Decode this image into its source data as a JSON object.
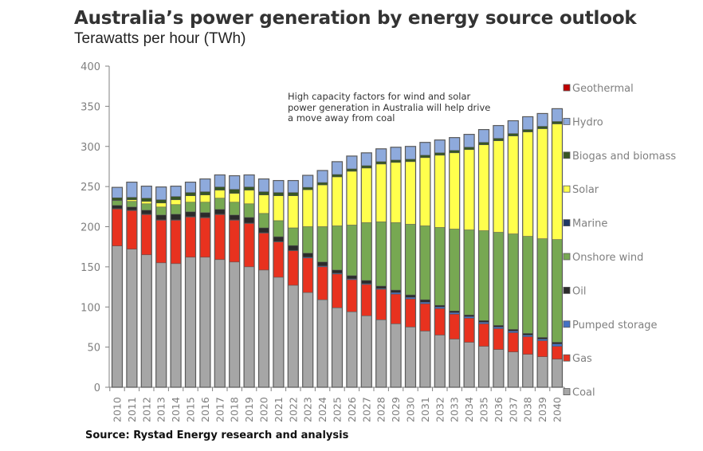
{
  "header": {
    "title": "Australia’s power generation by energy source outlook",
    "subtitle": "Terawatts per hour (TWh)"
  },
  "annotation": "High capacity factors for wind and solar power generation in Australia will help drive a move away from coal",
  "source": "Source: Rystad Energy research and analysis",
  "chart_data": {
    "type": "bar",
    "stacked": true,
    "title": "Australia’s power generation by energy source outlook",
    "subtitle": "Terawatts per hour (TWh)",
    "xlabel": "",
    "ylabel": "",
    "ylim": [
      0,
      400
    ],
    "yticks": [
      0,
      50,
      100,
      150,
      200,
      250,
      300,
      350,
      400
    ],
    "grid": false,
    "legend_position": "right",
    "categories": [
      "2010",
      "2011",
      "2012",
      "2013",
      "2014",
      "2015",
      "2016",
      "2017",
      "2018",
      "2019",
      "2020",
      "2021",
      "2022",
      "2023",
      "2024",
      "2025",
      "2026",
      "2027",
      "2028",
      "2029",
      "2030",
      "2031",
      "2032",
      "2033",
      "2034",
      "2035",
      "2036",
      "2037",
      "2038",
      "2039",
      "2040"
    ],
    "series": [
      {
        "name": "Coal",
        "color": "#a6a6a6",
        "values": [
          176,
          172,
          165,
          155,
          154,
          162,
          162,
          159,
          156,
          150,
          146,
          137,
          127,
          118,
          109,
          99,
          94,
          89,
          84,
          79,
          75,
          70,
          65,
          60,
          56,
          51,
          47,
          44,
          41,
          38,
          35
        ]
      },
      {
        "name": "Gas",
        "color": "#e8321f",
        "values": [
          46,
          48,
          50,
          53,
          54,
          50,
          49,
          56,
          52,
          54,
          46,
          44,
          43,
          43,
          41,
          42,
          40,
          39,
          38,
          37,
          35,
          34,
          33,
          31,
          30,
          28,
          26,
          24,
          22,
          20,
          16
        ]
      },
      {
        "name": "Pumped storage",
        "color": "#4472c4",
        "values": [
          0.5,
          0.5,
          0.5,
          0.5,
          0.5,
          0.5,
          0.5,
          0.5,
          0.5,
          0.5,
          0.5,
          0.5,
          0.5,
          1,
          1,
          1,
          1,
          1,
          1,
          2,
          2,
          2,
          2,
          2,
          2,
          2,
          2,
          2,
          2,
          2,
          3
        ]
      },
      {
        "name": "Oil",
        "color": "#2b2b2b",
        "values": [
          4,
          4,
          5,
          6,
          7,
          6,
          6,
          6,
          6,
          7,
          6,
          6,
          6,
          5,
          5,
          4,
          4,
          4,
          3,
          3,
          3,
          3,
          2,
          2,
          2,
          2,
          2,
          2,
          2,
          2,
          2
        ]
      },
      {
        "name": "Onshore wind",
        "color": "#77a852",
        "values": [
          6,
          7,
          8,
          10,
          12,
          12,
          13,
          14,
          16,
          17,
          18,
          20,
          22,
          33,
          44,
          55,
          63,
          72,
          80,
          84,
          88,
          92,
          97,
          102,
          106,
          112,
          116,
          119,
          121,
          123,
          128
        ]
      },
      {
        "name": "Marine",
        "color": "#1f3864",
        "values": [
          0,
          0,
          0,
          0,
          0,
          0,
          0,
          0,
          0,
          0,
          0,
          0,
          0,
          0,
          0,
          0,
          0,
          0,
          0,
          0,
          0,
          0,
          0,
          0,
          0,
          0,
          0,
          0,
          0,
          0,
          0
        ]
      },
      {
        "name": "Solar",
        "color": "#ffff4d",
        "values": [
          0.5,
          2,
          3,
          5,
          6,
          8,
          9,
          10,
          11,
          17,
          23,
          31,
          40,
          46,
          52,
          61,
          67,
          68,
          72,
          75,
          78,
          85,
          90,
          95,
          100,
          107,
          114,
          122,
          130,
          137,
          144
        ]
      },
      {
        "name": "Biogas and biomass",
        "color": "#375623",
        "values": [
          3,
          3,
          4,
          4,
          4,
          4,
          4,
          4,
          5,
          4,
          4,
          4,
          4,
          3,
          3,
          3,
          3,
          3,
          3,
          3,
          3,
          3,
          3,
          3,
          3,
          3,
          3,
          3,
          3,
          3,
          3
        ]
      },
      {
        "name": "Hydro",
        "color": "#8eaadc",
        "values": [
          13,
          19,
          15,
          16,
          13,
          13,
          16,
          15,
          17,
          15,
          16,
          15,
          15,
          15,
          15,
          16,
          16,
          16,
          16,
          16,
          16,
          16,
          16,
          16,
          16,
          16,
          16,
          16,
          16,
          16,
          16
        ]
      },
      {
        "name": "Geothermal",
        "color": "#c00000",
        "values": [
          0,
          0,
          0,
          0,
          0,
          0,
          0,
          0,
          0,
          0,
          0,
          0,
          0,
          0,
          0,
          0,
          0,
          0,
          0,
          0,
          0,
          0,
          0,
          0,
          0,
          0,
          0,
          0,
          0,
          0,
          0
        ]
      }
    ],
    "legend_order": [
      "Geothermal",
      "Hydro",
      "Biogas and biomass",
      "Solar",
      "Marine",
      "Onshore wind",
      "Oil",
      "Pumped storage",
      "Gas",
      "Coal"
    ],
    "annotations": [
      "High capacity factors for wind and solar power generation in Australia will help drive a move away from coal"
    ]
  }
}
